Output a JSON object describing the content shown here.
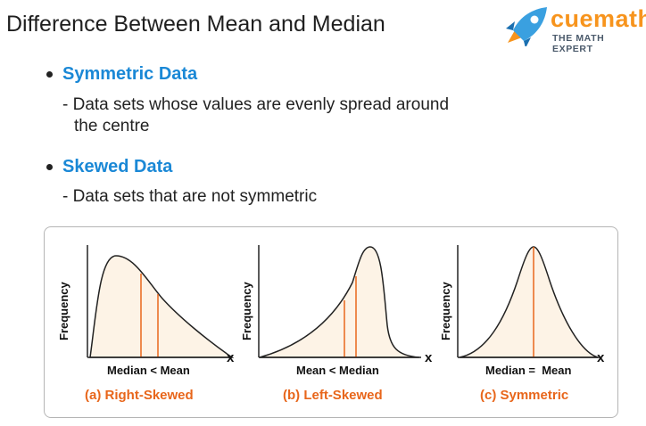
{
  "title": "Difference Between Mean and Median",
  "logo": {
    "brand": "cuemath",
    "tagline": "THE MATH EXPERT"
  },
  "bullets": [
    {
      "heading": "Symmetric Data",
      "description": "- Data sets whose values are evenly spread around",
      "description_cont": "the centre"
    },
    {
      "heading": "Skewed Data",
      "description": "- Data sets that are not symmetric"
    }
  ],
  "graphs": [
    {
      "y_label": "Frequency",
      "x_label": "Median < Mean",
      "x_axis": "x",
      "caption": "(a) Right-Skewed"
    },
    {
      "y_label": "Frequency",
      "x_label": "Mean < Median",
      "x_axis": "x",
      "caption": "(b) Left-Skewed"
    },
    {
      "y_label": "Frequency",
      "x_label": "Median =  Mean",
      "x_axis": "x",
      "caption": "(c) Symmetric"
    }
  ],
  "colors": {
    "heading": "#1a88d6",
    "accent": "#e8661b",
    "fill": "#fdf3e6",
    "brand": "#f7941d"
  }
}
